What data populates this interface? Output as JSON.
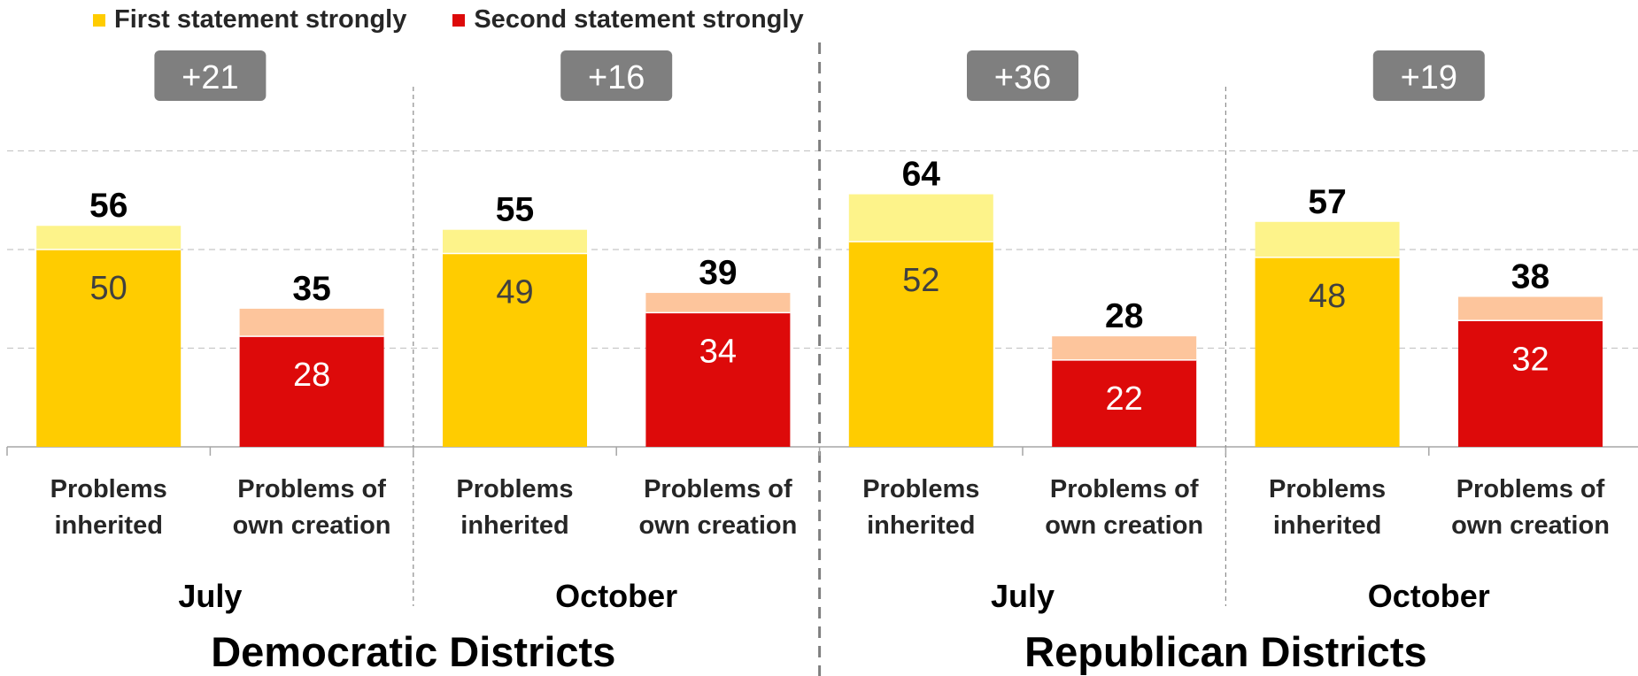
{
  "legend": [
    {
      "label": "First statement strongly",
      "color": "#ffcc00"
    },
    {
      "label": "Second statement strongly",
      "color": "#dd0a0a"
    }
  ],
  "colors": {
    "first_strong": "#ffcc00",
    "first_total": "#fdf38a",
    "second_strong": "#dd0a0a",
    "second_total": "#fdc59c",
    "badge": "#7f7f7f"
  },
  "chart_data": {
    "type": "bar",
    "stacked": true,
    "ylim": [
      0,
      100
    ],
    "grid": true,
    "legend_position": "top-left",
    "groups": [
      {
        "name": "Democratic Districts",
        "periods": [
          {
            "name": "July",
            "difference": "+21",
            "bars": [
              {
                "category": "Problems inherited",
                "strongly": 50,
                "total": 56
              },
              {
                "category": "Problems of own creation",
                "strongly": 28,
                "total": 35
              }
            ]
          },
          {
            "name": "October",
            "difference": "+16",
            "bars": [
              {
                "category": "Problems inherited",
                "strongly": 49,
                "total": 55
              },
              {
                "category": "Problems of own creation",
                "strongly": 34,
                "total": 39
              }
            ]
          }
        ]
      },
      {
        "name": "Republican Districts",
        "periods": [
          {
            "name": "July",
            "difference": "+36",
            "bars": [
              {
                "category": "Problems inherited",
                "strongly": 52,
                "total": 64
              },
              {
                "category": "Problems of own creation",
                "strongly": 22,
                "total": 28
              }
            ]
          },
          {
            "name": "October",
            "difference": "+19",
            "bars": [
              {
                "category": "Problems inherited",
                "strongly": 48,
                "total": 57
              },
              {
                "category": "Problems of own creation",
                "strongly": 32,
                "total": 38
              }
            ]
          }
        ]
      }
    ]
  }
}
